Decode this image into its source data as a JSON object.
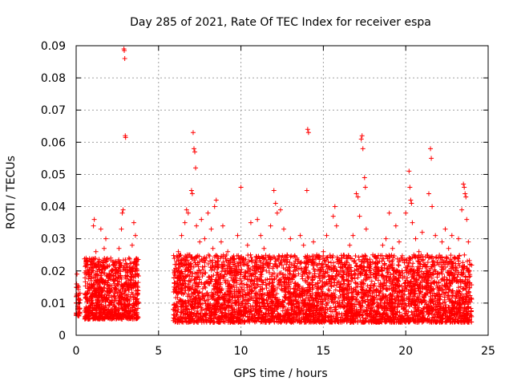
{
  "chart_data": {
    "type": "scatter",
    "title": "Day 285 of 2021, Rate Of TEC Index for receiver espa",
    "xlabel": "GPS time / hours",
    "ylabel": "ROTI / TECUs",
    "xlim": [
      0,
      25
    ],
    "ylim": [
      0,
      0.09
    ],
    "xticks": [
      0,
      5,
      10,
      15,
      20,
      25
    ],
    "xtick_labels": [
      "0",
      "5",
      "10",
      "15",
      "20",
      "25"
    ],
    "yticks": [
      0,
      0.01,
      0.02,
      0.03,
      0.04,
      0.05,
      0.06,
      0.07,
      0.08,
      0.09
    ],
    "ytick_labels": [
      "0",
      "0.01",
      "0.02",
      "0.03",
      "0.04",
      "0.05",
      "0.06",
      "0.07",
      "0.08",
      "0.09"
    ],
    "grid": true,
    "marker": "+",
    "color": "#ff0000",
    "series": [
      {
        "name": "ROTI",
        "points": [
          [
            0.0,
            0.012
          ],
          [
            0.05,
            0.019
          ],
          [
            0.1,
            0.009
          ],
          [
            0.15,
            0.015
          ],
          [
            0.2,
            0.007
          ],
          [
            0.25,
            0.011
          ],
          [
            0.55,
            0.013
          ],
          [
            0.6,
            0.024
          ],
          [
            0.65,
            0.008
          ],
          [
            0.7,
            0.016
          ],
          [
            0.75,
            0.005
          ],
          [
            0.8,
            0.019
          ],
          [
            0.9,
            0.021
          ],
          [
            1.0,
            0.012
          ],
          [
            1.05,
            0.034
          ],
          [
            1.1,
            0.036
          ],
          [
            1.15,
            0.018
          ],
          [
            1.2,
            0.026
          ],
          [
            1.3,
            0.01
          ],
          [
            1.4,
            0.022
          ],
          [
            1.5,
            0.033
          ],
          [
            1.6,
            0.014
          ],
          [
            1.7,
            0.027
          ],
          [
            1.8,
            0.03
          ],
          [
            1.9,
            0.011
          ],
          [
            2.0,
            0.019
          ],
          [
            2.1,
            0.024
          ],
          [
            2.2,
            0.008
          ],
          [
            2.3,
            0.016
          ],
          [
            2.4,
            0.021
          ],
          [
            2.5,
            0.013
          ],
          [
            2.6,
            0.027
          ],
          [
            2.7,
            0.018
          ],
          [
            2.75,
            0.033
          ],
          [
            2.8,
            0.038
          ],
          [
            2.85,
            0.039
          ],
          [
            2.9,
            0.089
          ],
          [
            2.92,
            0.0885
          ],
          [
            2.95,
            0.086
          ],
          [
            2.98,
            0.062
          ],
          [
            3.0,
            0.0615
          ],
          [
            3.05,
            0.021
          ],
          [
            3.1,
            0.015
          ],
          [
            3.2,
            0.024
          ],
          [
            3.3,
            0.012
          ],
          [
            3.4,
            0.028
          ],
          [
            3.5,
            0.035
          ],
          [
            3.6,
            0.031
          ],
          [
            3.7,
            0.019
          ],
          [
            3.75,
            0.01
          ],
          [
            5.9,
            0.008
          ],
          [
            6.0,
            0.022
          ],
          [
            6.1,
            0.015
          ],
          [
            6.2,
            0.026
          ],
          [
            6.3,
            0.011
          ],
          [
            6.4,
            0.031
          ],
          [
            6.5,
            0.018
          ],
          [
            6.6,
            0.035
          ],
          [
            6.7,
            0.039
          ],
          [
            6.8,
            0.038
          ],
          [
            6.9,
            0.025
          ],
          [
            7.0,
            0.045
          ],
          [
            7.05,
            0.044
          ],
          [
            7.1,
            0.063
          ],
          [
            7.15,
            0.058
          ],
          [
            7.2,
            0.057
          ],
          [
            7.25,
            0.052
          ],
          [
            7.3,
            0.034
          ],
          [
            7.4,
            0.019
          ],
          [
            7.5,
            0.029
          ],
          [
            7.6,
            0.036
          ],
          [
            7.7,
            0.012
          ],
          [
            7.8,
            0.03
          ],
          [
            7.9,
            0.024
          ],
          [
            8.0,
            0.038
          ],
          [
            8.1,
            0.016
          ],
          [
            8.2,
            0.033
          ],
          [
            8.3,
            0.027
          ],
          [
            8.4,
            0.04
          ],
          [
            8.5,
            0.042
          ],
          [
            8.6,
            0.021
          ],
          [
            8.7,
            0.015
          ],
          [
            8.8,
            0.029
          ],
          [
            8.9,
            0.034
          ],
          [
            9.0,
            0.011
          ],
          [
            9.2,
            0.026
          ],
          [
            9.4,
            0.018
          ],
          [
            9.6,
            0.023
          ],
          [
            9.8,
            0.031
          ],
          [
            10.0,
            0.046
          ],
          [
            10.2,
            0.014
          ],
          [
            10.4,
            0.028
          ],
          [
            10.6,
            0.035
          ],
          [
            10.8,
            0.02
          ],
          [
            11.0,
            0.036
          ],
          [
            11.2,
            0.031
          ],
          [
            11.4,
            0.027
          ],
          [
            11.6,
            0.022
          ],
          [
            11.8,
            0.034
          ],
          [
            12.0,
            0.045
          ],
          [
            12.1,
            0.041
          ],
          [
            12.2,
            0.038
          ],
          [
            12.4,
            0.039
          ],
          [
            12.6,
            0.033
          ],
          [
            12.8,
            0.025
          ],
          [
            13.0,
            0.03
          ],
          [
            13.2,
            0.019
          ],
          [
            13.4,
            0.024
          ],
          [
            13.6,
            0.031
          ],
          [
            13.8,
            0.028
          ],
          [
            14.0,
            0.045
          ],
          [
            14.05,
            0.064
          ],
          [
            14.1,
            0.063
          ],
          [
            14.2,
            0.016
          ],
          [
            14.4,
            0.029
          ],
          [
            14.6,
            0.022
          ],
          [
            14.8,
            0.017
          ],
          [
            15.0,
            0.026
          ],
          [
            15.2,
            0.031
          ],
          [
            15.4,
            0.021
          ],
          [
            15.6,
            0.037
          ],
          [
            15.7,
            0.04
          ],
          [
            15.8,
            0.034
          ],
          [
            16.0,
            0.015
          ],
          [
            16.2,
            0.018
          ],
          [
            16.4,
            0.023
          ],
          [
            16.6,
            0.028
          ],
          [
            16.8,
            0.031
          ],
          [
            17.0,
            0.044
          ],
          [
            17.1,
            0.043
          ],
          [
            17.2,
            0.037
          ],
          [
            17.3,
            0.061
          ],
          [
            17.35,
            0.062
          ],
          [
            17.4,
            0.058
          ],
          [
            17.5,
            0.049
          ],
          [
            17.55,
            0.046
          ],
          [
            17.6,
            0.033
          ],
          [
            17.8,
            0.02
          ],
          [
            18.0,
            0.025
          ],
          [
            18.2,
            0.019
          ],
          [
            18.4,
            0.023
          ],
          [
            18.6,
            0.028
          ],
          [
            18.8,
            0.03
          ],
          [
            19.0,
            0.038
          ],
          [
            19.2,
            0.027
          ],
          [
            19.4,
            0.034
          ],
          [
            19.6,
            0.029
          ],
          [
            19.8,
            0.024
          ],
          [
            20.0,
            0.038
          ],
          [
            20.2,
            0.051
          ],
          [
            20.25,
            0.046
          ],
          [
            20.3,
            0.042
          ],
          [
            20.35,
            0.041
          ],
          [
            20.4,
            0.035
          ],
          [
            20.6,
            0.03
          ],
          [
            20.8,
            0.026
          ],
          [
            21.0,
            0.032
          ],
          [
            21.2,
            0.022
          ],
          [
            21.4,
            0.044
          ],
          [
            21.5,
            0.058
          ],
          [
            21.55,
            0.055
          ],
          [
            21.6,
            0.04
          ],
          [
            21.8,
            0.031
          ],
          [
            22.0,
            0.022
          ],
          [
            22.2,
            0.029
          ],
          [
            22.4,
            0.033
          ],
          [
            22.6,
            0.027
          ],
          [
            22.8,
            0.031
          ],
          [
            23.0,
            0.024
          ],
          [
            23.2,
            0.03
          ],
          [
            23.4,
            0.039
          ],
          [
            23.5,
            0.047
          ],
          [
            23.55,
            0.046
          ],
          [
            23.6,
            0.044
          ],
          [
            23.65,
            0.043
          ],
          [
            23.7,
            0.036
          ],
          [
            23.8,
            0.029
          ],
          [
            23.9,
            0.022
          ]
        ],
        "dense_bands": [
          {
            "x_range": [
              0.0,
              0.25
            ],
            "y_range": [
              0.006,
              0.016
            ],
            "count": 40
          },
          {
            "x_range": [
              0.5,
              3.8
            ],
            "y_range": [
              0.005,
              0.024
            ],
            "count": 900
          },
          {
            "x_range": [
              5.9,
              24.0
            ],
            "y_range": [
              0.004,
              0.025
            ],
            "count": 4200
          }
        ]
      }
    ]
  }
}
